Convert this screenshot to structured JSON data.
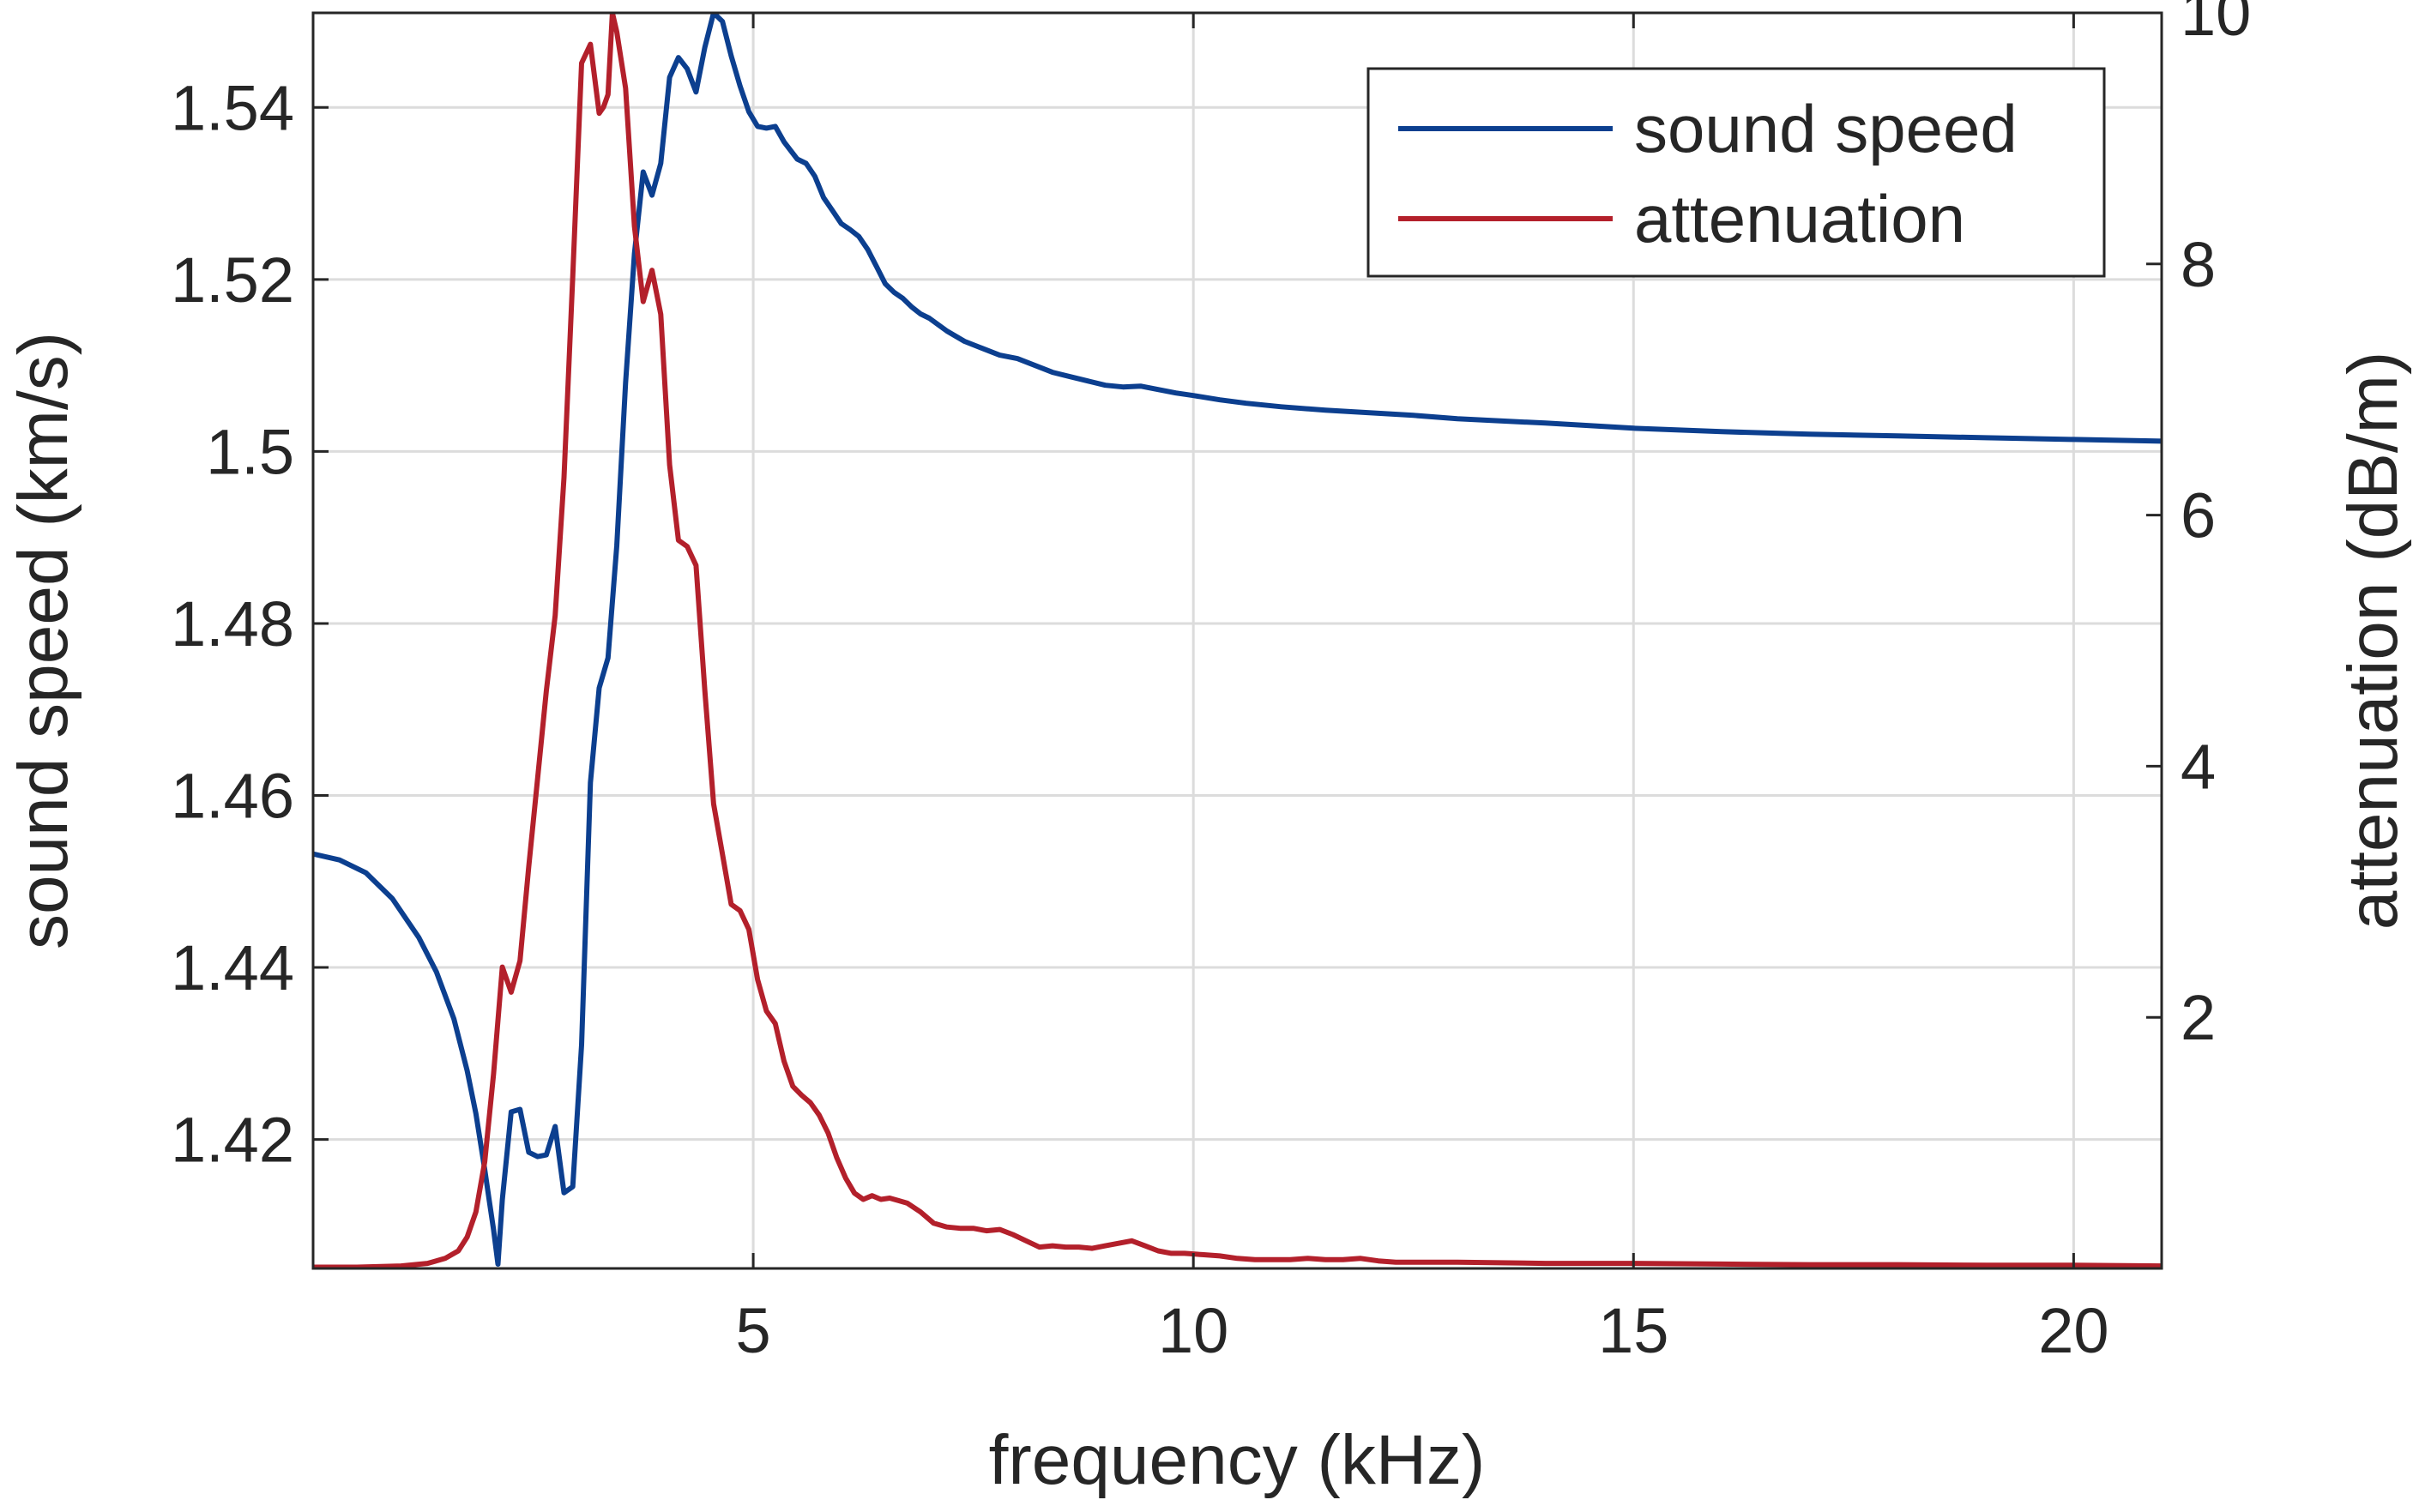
{
  "chart_data": {
    "type": "line",
    "xlabel": "frequency (kHz)",
    "ylabel_left": "sound speed (km/s)",
    "ylabel_right": "attenuation (dB/m)",
    "xlim": [
      0,
      21
    ],
    "ylim_left": [
      1.405,
      1.551
    ],
    "ylim_right": [
      0,
      10
    ],
    "xticks": [
      5,
      10,
      15,
      20
    ],
    "xtick_labels": [
      "5",
      "10",
      "15",
      "20"
    ],
    "yticks_left": [
      1.42,
      1.44,
      1.46,
      1.48,
      1.5,
      1.52,
      1.54
    ],
    "ytick_labels_left": [
      "1.42",
      "1.44",
      "1.46",
      "1.48",
      "1.5",
      "1.52",
      "1.54"
    ],
    "yticks_right": [
      2,
      4,
      6,
      8,
      10
    ],
    "ytick_labels_right": [
      "2",
      "4",
      "6",
      "8",
      "10"
    ],
    "grid": true,
    "legend_position": "top-right",
    "series": [
      {
        "name": "sound speed",
        "axis": "left",
        "color": "#0c3f8f",
        "x": [
          0,
          0.3,
          0.6,
          0.9,
          1.2,
          1.4,
          1.6,
          1.75,
          1.85,
          1.95,
          2.0,
          2.05,
          2.1,
          2.15,
          2.25,
          2.35,
          2.45,
          2.55,
          2.65,
          2.75,
          2.85,
          2.95,
          3.05,
          3.15,
          3.25,
          3.35,
          3.45,
          3.55,
          3.65,
          3.75,
          3.85,
          3.95,
          4.05,
          4.15,
          4.25,
          4.35,
          4.45,
          4.55,
          4.65,
          4.75,
          4.85,
          4.95,
          5.05,
          5.15,
          5.25,
          5.35,
          5.5,
          5.6,
          5.7,
          5.8,
          5.9,
          6.0,
          6.1,
          6.2,
          6.3,
          6.4,
          6.5,
          6.6,
          6.7,
          6.8,
          6.9,
          7.0,
          7.2,
          7.4,
          7.6,
          7.8,
          8.0,
          8.2,
          8.4,
          8.6,
          8.8,
          9.0,
          9.2,
          9.4,
          9.6,
          9.8,
          10.0,
          10.3,
          10.6,
          11.0,
          11.5,
          12.0,
          12.5,
          13,
          14,
          15,
          16,
          17,
          18,
          19,
          20,
          21
        ],
        "y": [
          1.4532,
          1.4525,
          1.451,
          1.448,
          1.4435,
          1.4395,
          1.434,
          1.428,
          1.423,
          1.4165,
          1.413,
          1.4095,
          1.4055,
          1.413,
          1.4232,
          1.4235,
          1.4185,
          1.418,
          1.4182,
          1.4215,
          1.4138,
          1.4145,
          1.431,
          1.4615,
          1.4725,
          1.476,
          1.489,
          1.508,
          1.523,
          1.5325,
          1.5298,
          1.5335,
          1.5435,
          1.5458,
          1.5445,
          1.5418,
          1.547,
          1.551,
          1.55,
          1.546,
          1.5425,
          1.5395,
          1.5378,
          1.5376,
          1.5378,
          1.536,
          1.534,
          1.5335,
          1.532,
          1.5295,
          1.528,
          1.5265,
          1.5258,
          1.525,
          1.5235,
          1.5215,
          1.5195,
          1.5185,
          1.5178,
          1.5168,
          1.516,
          1.5155,
          1.514,
          1.5128,
          1.512,
          1.5112,
          1.5108,
          1.51,
          1.5092,
          1.5087,
          1.5082,
          1.5077,
          1.5075,
          1.5076,
          1.5072,
          1.5068,
          1.5065,
          1.506,
          1.5056,
          1.5052,
          1.5048,
          1.5045,
          1.5042,
          1.5038,
          1.5033,
          1.5027,
          1.5023,
          1.502,
          1.5018,
          1.5016,
          1.5014,
          1.5012
        ]
      },
      {
        "name": "attenuation",
        "axis": "right",
        "color": "#b3202b",
        "x": [
          0,
          0.5,
          1.0,
          1.3,
          1.5,
          1.65,
          1.75,
          1.85,
          1.95,
          2.05,
          2.15,
          2.25,
          2.35,
          2.45,
          2.55,
          2.65,
          2.75,
          2.85,
          2.95,
          3.05,
          3.15,
          3.25,
          3.3,
          3.35,
          3.4,
          3.45,
          3.55,
          3.65,
          3.75,
          3.85,
          3.95,
          4.05,
          4.15,
          4.25,
          4.35,
          4.45,
          4.55,
          4.65,
          4.75,
          4.85,
          4.95,
          5.05,
          5.15,
          5.25,
          5.35,
          5.45,
          5.55,
          5.65,
          5.75,
          5.85,
          5.95,
          6.05,
          6.15,
          6.25,
          6.35,
          6.45,
          6.55,
          6.65,
          6.75,
          6.9,
          7.05,
          7.2,
          7.35,
          7.5,
          7.65,
          7.8,
          7.95,
          8.1,
          8.25,
          8.4,
          8.55,
          8.7,
          8.85,
          9.0,
          9.15,
          9.3,
          9.45,
          9.6,
          9.75,
          9.9,
          10.1,
          10.3,
          10.5,
          10.7,
          10.9,
          11.1,
          11.3,
          11.5,
          11.7,
          11.9,
          12.1,
          12.3,
          12.5,
          13,
          14,
          15,
          16,
          17,
          18,
          19,
          20,
          21
        ],
        "y": [
          0.01,
          0.01,
          0.02,
          0.04,
          0.08,
          0.14,
          0.25,
          0.45,
          0.85,
          1.55,
          2.4,
          2.2,
          2.45,
          3.2,
          3.9,
          4.6,
          5.2,
          6.3,
          7.9,
          9.6,
          9.75,
          9.2,
          9.25,
          9.35,
          10.0,
          9.85,
          9.4,
          8.3,
          7.7,
          7.95,
          7.6,
          6.4,
          5.8,
          5.75,
          5.6,
          4.6,
          3.7,
          3.3,
          2.9,
          2.85,
          2.7,
          2.3,
          2.05,
          1.95,
          1.65,
          1.45,
          1.38,
          1.32,
          1.22,
          1.08,
          0.88,
          0.72,
          0.6,
          0.55,
          0.58,
          0.55,
          0.56,
          0.54,
          0.52,
          0.45,
          0.36,
          0.33,
          0.32,
          0.32,
          0.3,
          0.31,
          0.27,
          0.22,
          0.17,
          0.18,
          0.17,
          0.17,
          0.16,
          0.18,
          0.2,
          0.22,
          0.18,
          0.14,
          0.12,
          0.12,
          0.11,
          0.1,
          0.08,
          0.07,
          0.07,
          0.07,
          0.08,
          0.07,
          0.07,
          0.08,
          0.06,
          0.05,
          0.05,
          0.05,
          0.04,
          0.04,
          0.035,
          0.03,
          0.03,
          0.025,
          0.025,
          0.02
        ]
      }
    ]
  }
}
